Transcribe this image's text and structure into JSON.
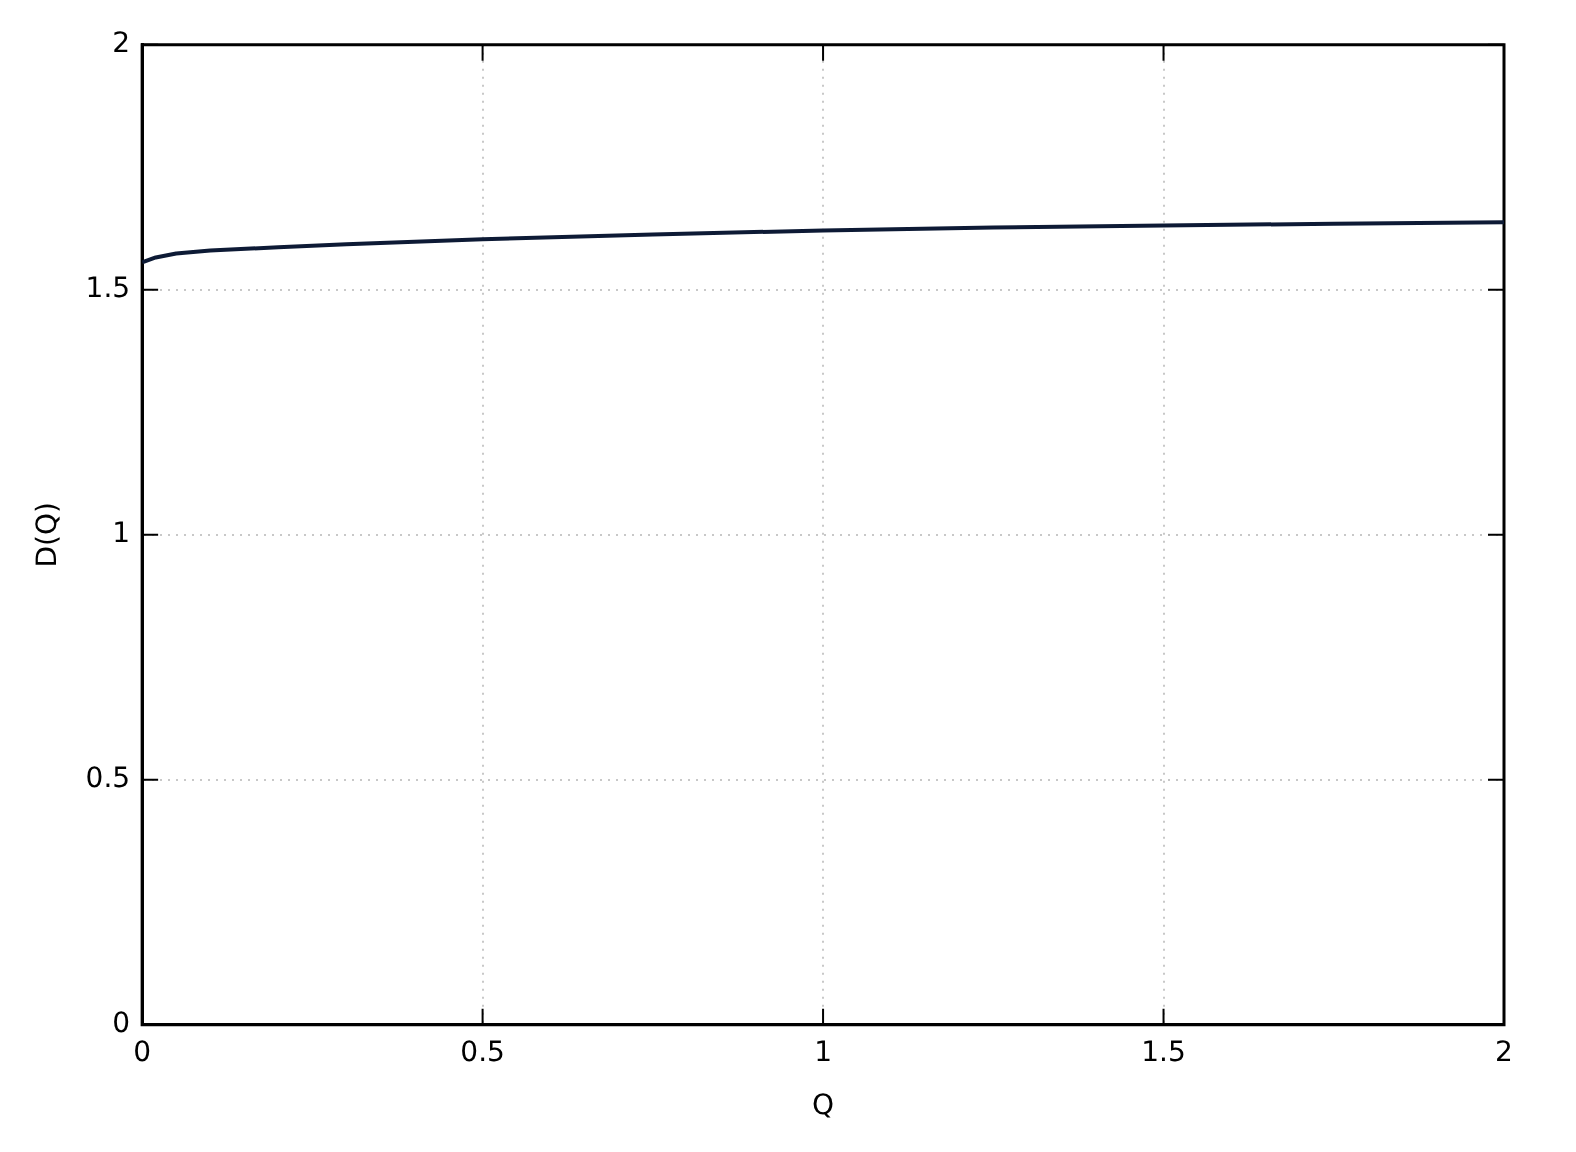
{
  "chart_data": {
    "type": "line",
    "xlabel": "Q",
    "ylabel": "D(Q)",
    "x": [
      0,
      0.02,
      0.05,
      0.1,
      0.2,
      0.3,
      0.5,
      0.75,
      1,
      1.25,
      1.5,
      1.75,
      2
    ],
    "series": [
      {
        "color": "#0d1a35",
        "values": [
          1.556,
          1.566,
          1.574,
          1.58,
          1.587,
          1.593,
          1.603,
          1.613,
          1.621,
          1.627,
          1.631,
          1.635,
          1.638
        ]
      }
    ],
    "xlim": [
      0,
      2
    ],
    "ylim": [
      0,
      2
    ],
    "xticks": [
      0,
      0.5,
      1,
      1.5,
      2
    ],
    "yticks": [
      0,
      0.5,
      1,
      1.5,
      2
    ],
    "grid": true,
    "legend": false,
    "marker": "none",
    "line_style": "solid"
  }
}
